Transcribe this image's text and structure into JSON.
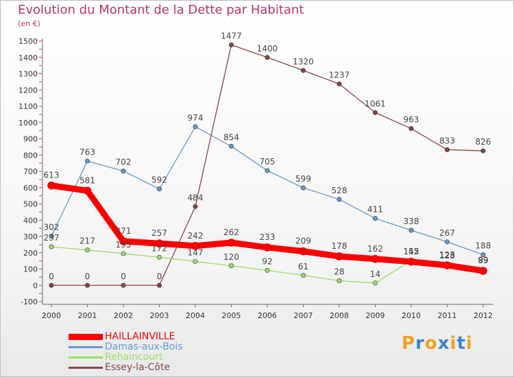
{
  "title": "Evolution du Montant de la Dette par Habitant",
  "subtitle": "(en €)",
  "logo_text": "Proxiti",
  "chart_data": {
    "type": "line",
    "title": "Evolution du Montant de la Dette par Habitant",
    "ylabel": "(en €)",
    "xlabel": "",
    "ylim": [
      -100,
      1500
    ],
    "yticks": [
      -100,
      0,
      100,
      200,
      300,
      400,
      500,
      600,
      700,
      800,
      900,
      1000,
      1100,
      1200,
      1300,
      1400,
      1500
    ],
    "grid": false,
    "legend_position": "bottom-left",
    "x": [
      "2000",
      "2001",
      "2002",
      "2003",
      "2004",
      "2005",
      "2006",
      "2007",
      "2008",
      "2009",
      "2010",
      "2011",
      "2012"
    ],
    "series": [
      {
        "name": "HAILLAINVILLE",
        "color": "#ff0000",
        "values": [
          613,
          581,
          271,
          257,
          242,
          262,
          233,
          209,
          178,
          162,
          145,
          123,
          89
        ]
      },
      {
        "name": "Damas-aux-Bois",
        "color": "#6699cc",
        "values": [
          302,
          763,
          702,
          592,
          974,
          854,
          705,
          599,
          528,
          411,
          338,
          267,
          188
        ]
      },
      {
        "name": "Rehaincourt",
        "color": "#99dd66",
        "values": [
          237,
          217,
          195,
          172,
          147,
          120,
          92,
          61,
          28,
          14,
          152,
          128,
          99
        ]
      },
      {
        "name": "Essey-la-Côte",
        "color": "#884444",
        "values": [
          0,
          0,
          0,
          0,
          484,
          1477,
          1400,
          1320,
          1237,
          1061,
          963,
          833,
          826
        ]
      }
    ]
  }
}
